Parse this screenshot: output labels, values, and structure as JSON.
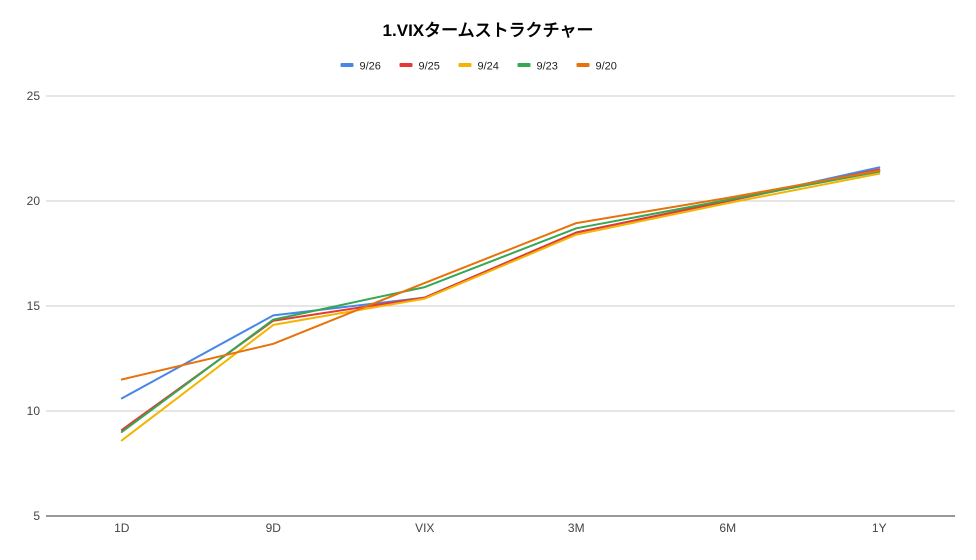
{
  "chart_data": {
    "type": "line",
    "title": "1.VIXタームストラクチャー",
    "xlabel": "",
    "ylabel": "",
    "categories": [
      "1D",
      "9D",
      "VIX",
      "3M",
      "6M",
      "1Y"
    ],
    "ylim": [
      5,
      25
    ],
    "yticks": [
      5,
      10,
      15,
      20,
      25
    ],
    "grid": true,
    "legend_position": "top",
    "series": [
      {
        "name": "9/26",
        "color": "#4a86e8",
        "values": [
          10.6,
          14.55,
          15.4,
          18.5,
          20.0,
          21.6
        ]
      },
      {
        "name": "9/25",
        "color": "#e53935",
        "values": [
          9.1,
          14.3,
          15.4,
          18.5,
          20.0,
          21.5
        ]
      },
      {
        "name": "9/24",
        "color": "#f4b400",
        "values": [
          8.6,
          14.1,
          15.35,
          18.4,
          19.9,
          21.3
        ]
      },
      {
        "name": "9/23",
        "color": "#34a853",
        "values": [
          9.0,
          14.35,
          15.9,
          18.7,
          20.05,
          21.4
        ]
      },
      {
        "name": "9/20",
        "color": "#e8710a",
        "values": [
          11.5,
          13.2,
          16.1,
          18.95,
          20.15,
          21.45
        ]
      }
    ]
  }
}
